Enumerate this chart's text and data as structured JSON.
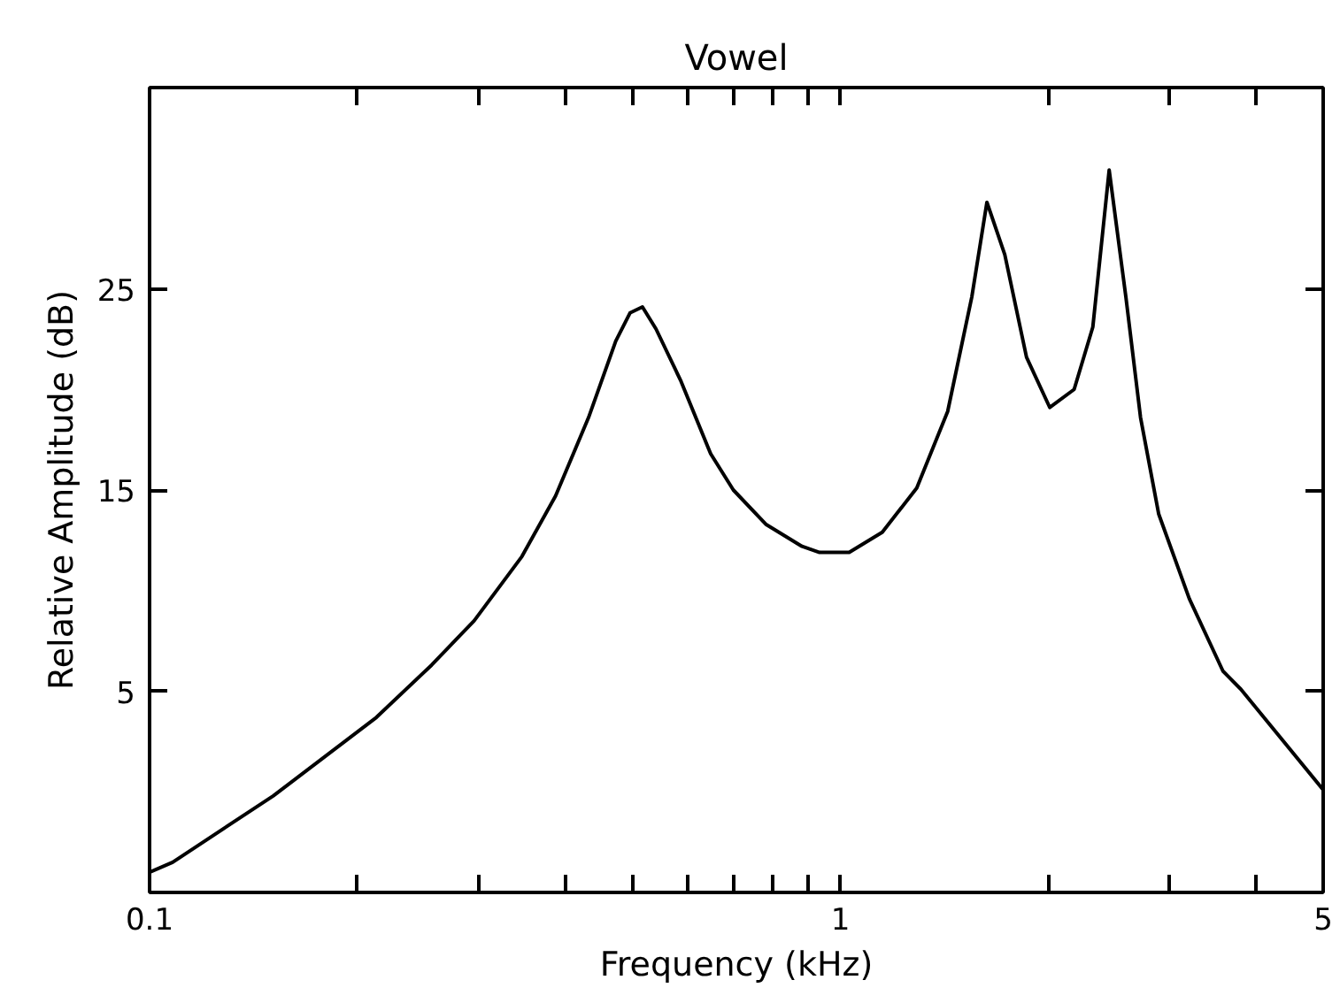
{
  "chart_data": {
    "type": "line",
    "title": "Vowel",
    "xlabel": "Frequency (kHz)",
    "ylabel": "Relative Amplitude (dB)",
    "log": "x",
    "xlim": [
      0.1,
      5
    ],
    "ylim": [
      -5,
      35
    ],
    "xticks": [
      0.1,
      {
        "value": 0.2,
        "label": null
      },
      {
        "value": 0.3,
        "label": null
      },
      {
        "value": 0.4,
        "label": null
      },
      {
        "value": 0.5,
        "label": null
      },
      {
        "value": 0.6,
        "label": null
      },
      {
        "value": 0.7,
        "label": null
      },
      {
        "value": 0.8,
        "label": null
      },
      {
        "value": 0.9,
        "label": null
      },
      1,
      {
        "value": 2,
        "label": null
      },
      {
        "value": 3,
        "label": null
      },
      {
        "value": 4,
        "label": null
      },
      5
    ],
    "yticks": [
      5,
      15,
      25
    ],
    "grid": false,
    "marker": "none",
    "line_style": "solid",
    "series": [
      {
        "color": "#000000",
        "x": [
          0.1,
          0.108,
          0.151,
          0.213,
          0.256,
          0.295,
          0.346,
          0.387,
          0.432,
          0.473,
          0.496,
          0.517,
          0.541,
          0.588,
          0.649,
          0.7,
          0.78,
          0.88,
          0.933,
          1.03,
          1.15,
          1.29,
          1.43,
          1.55,
          1.63,
          1.73,
          1.86,
          2.01,
          2.18,
          2.32,
          2.45,
          2.59,
          2.72,
          2.89,
          3.2,
          3.58,
          3.8,
          5
        ],
        "values": [
          -4.0,
          -3.5,
          -0.2,
          3.7,
          6.3,
          8.5,
          11.7,
          14.7,
          18.6,
          22.4,
          23.8,
          24.1,
          23.0,
          20.4,
          16.8,
          15.0,
          13.3,
          12.2,
          11.9,
          11.9,
          12.9,
          15.1,
          18.9,
          24.6,
          29.3,
          26.7,
          21.6,
          19.1,
          20.0,
          23.1,
          30.9,
          24.6,
          18.6,
          13.8,
          9.6,
          6.0,
          5.1,
          0.1
        ]
      }
    ]
  }
}
